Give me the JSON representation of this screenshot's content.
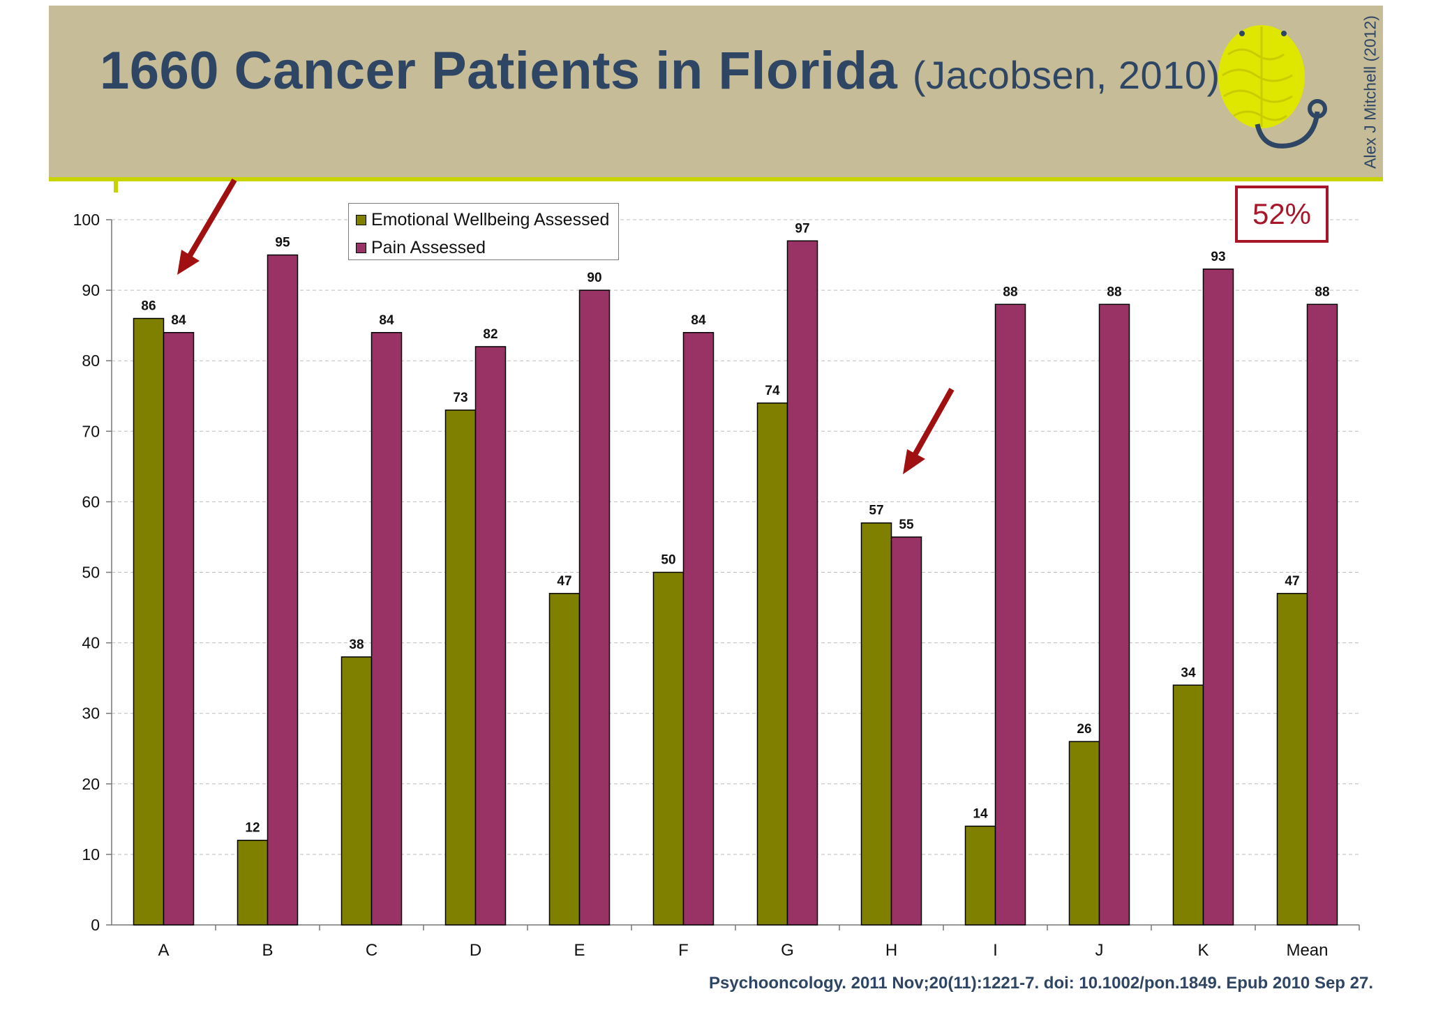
{
  "slide": {
    "title": "1660 Cancer Patients in Florida",
    "subtitle": "(Jacobsen, 2010)",
    "author_credit": "Alex J Mitchell (2012)",
    "citation": "Psychooncology. 2011 Nov;20(11):1221-7. doi: 10.1002/pon.1849. Epub 2010 Sep 27.",
    "highlight_stat": "52%",
    "colors": {
      "header_band": "#c6bc97",
      "title_text": "#2e4563",
      "accent_rule": "#c8d400",
      "highlight_red": "#a8162a"
    },
    "icons": [
      "brain-stethoscope-logo-icon",
      "red-arrow-icon"
    ]
  },
  "chart_data": {
    "type": "bar",
    "categories": [
      "A",
      "B",
      "C",
      "D",
      "E",
      "F",
      "G",
      "H",
      "I",
      "J",
      "K",
      "Mean"
    ],
    "series": [
      {
        "name": "Emotional Wellbeing Assessed",
        "color": "#808000",
        "values": [
          86,
          12,
          38,
          73,
          47,
          50,
          74,
          57,
          14,
          26,
          34,
          47
        ]
      },
      {
        "name": "Pain Assessed",
        "color": "#993366",
        "values": [
          84,
          95,
          84,
          82,
          90,
          84,
          97,
          55,
          88,
          88,
          93,
          88
        ]
      }
    ],
    "ylim": [
      0,
      100
    ],
    "yticks": [
      0,
      10,
      20,
      30,
      40,
      50,
      60,
      70,
      80,
      90,
      100
    ],
    "grid": true,
    "legend_position": "top-left",
    "data_labels": true
  }
}
